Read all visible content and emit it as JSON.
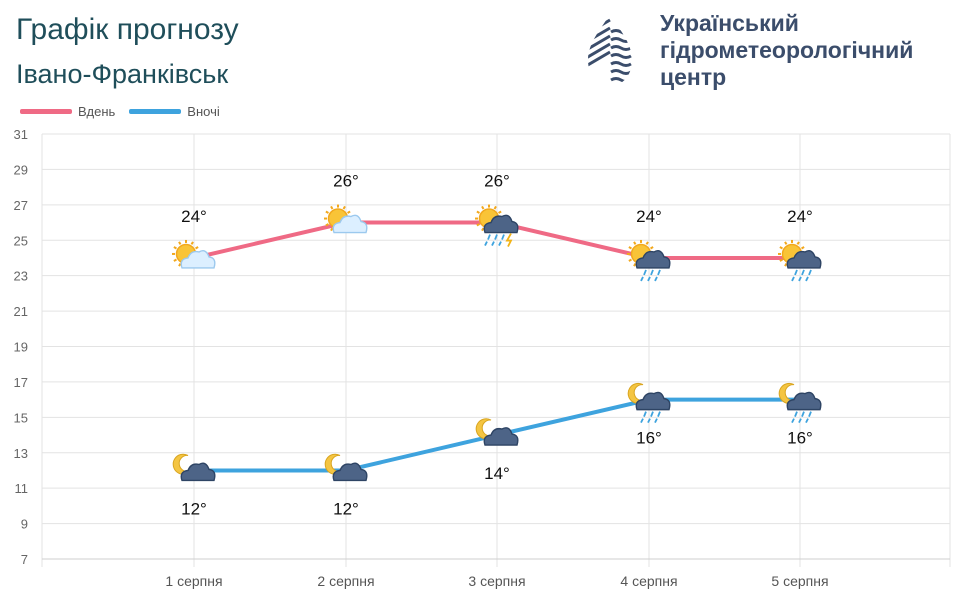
{
  "header": {
    "title": "Графік прогнозу",
    "city": "Івано-Франківськ"
  },
  "logo": {
    "name_line1": "Український",
    "name_line2": "гідрометеорологічний",
    "name_line3": "центр",
    "colors": {
      "dark": "#3b4d6b",
      "accent": "#f2b316"
    }
  },
  "chart_data": {
    "type": "line",
    "categories": [
      "1 серпня",
      "2 серпня",
      "3 серпня",
      "4 серпня",
      "5 серпня"
    ],
    "series": [
      {
        "name": "Вдень",
        "color": "#ef6a85",
        "values": [
          24,
          26,
          26,
          24,
          24
        ],
        "labels": [
          "24°",
          "26°",
          "26°",
          "24°",
          "24°"
        ],
        "icons": [
          "sun-cloud",
          "sun-cloud",
          "sun-cloud-storm",
          "sun-cloud-rain",
          "sun-cloud-rain"
        ]
      },
      {
        "name": "Вночі",
        "color": "#3ea3de",
        "values": [
          12,
          12,
          14,
          16,
          16
        ],
        "labels": [
          "12°",
          "12°",
          "14°",
          "16°",
          "16°"
        ],
        "icons": [
          "moon-cloud",
          "moon-cloud",
          "moon-cloud",
          "moon-cloud-rain",
          "moon-cloud-rain"
        ]
      }
    ],
    "ylim": [
      7,
      31
    ],
    "yticks": [
      "7",
      "9",
      "11",
      "13",
      "15",
      "17",
      "19",
      "21",
      "23",
      "25",
      "27",
      "29",
      "31"
    ],
    "grid": true,
    "legend_position": "top-left"
  }
}
